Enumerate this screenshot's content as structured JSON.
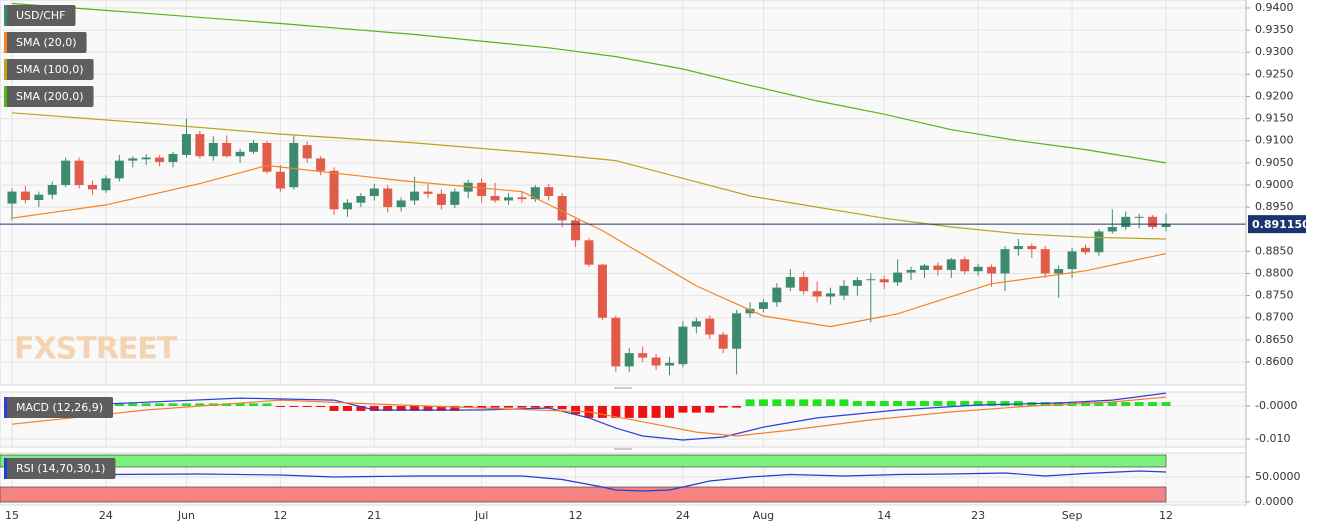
{
  "chart_data": [
    {
      "type": "candlestick",
      "name": "USD/CHF",
      "watermark": "FXSTREET",
      "categories": [
        "15",
        null,
        null,
        null,
        null,
        null,
        null,
        "24",
        null,
        null,
        null,
        null,
        null,
        "Jun",
        null,
        null,
        null,
        null,
        null,
        null,
        "12",
        null,
        null,
        null,
        null,
        null,
        null,
        "21",
        null,
        null,
        null,
        null,
        null,
        null,
        null,
        "Jul",
        null,
        null,
        null,
        null,
        null,
        null,
        "12",
        null,
        null,
        null,
        null,
        null,
        null,
        null,
        "24",
        null,
        null,
        null,
        null,
        null,
        "Aug",
        null,
        null,
        null,
        null,
        null,
        null,
        null,
        null,
        "14",
        null,
        null,
        null,
        null,
        null,
        null,
        "23",
        null,
        null,
        null,
        null,
        null,
        null,
        "Sep",
        null,
        null,
        null,
        null,
        null,
        null,
        "12"
      ],
      "open": [
        0.8958,
        0.8985,
        0.8966,
        0.8978,
        0.9,
        0.9055,
        0.9,
        0.8988,
        0.9015,
        0.9055,
        0.9058,
        0.9062,
        0.9052,
        0.9068,
        0.9115,
        0.9065,
        0.9095,
        0.9065,
        0.9075,
        0.9095,
        0.903,
        0.8995,
        0.909,
        0.906,
        0.9032,
        0.8945,
        0.896,
        0.8975,
        0.8992,
        0.895,
        0.8965,
        0.8985,
        0.898,
        0.8955,
        0.8985,
        0.9005,
        0.8975,
        0.8965,
        0.8972,
        0.8968,
        0.8995,
        0.8975,
        0.892,
        0.8875,
        0.882,
        0.87,
        0.859,
        0.862,
        0.861,
        0.8592,
        0.8595,
        0.868,
        0.8698,
        0.8662,
        0.863,
        0.871,
        0.872,
        0.8735,
        0.8768,
        0.8792,
        0.876,
        0.8748,
        0.875,
        0.8772,
        0.8786,
        0.8787,
        0.878,
        0.8802,
        0.8808,
        0.8818,
        0.8808,
        0.8832,
        0.8805,
        0.8815,
        0.88,
        0.8855,
        0.8862,
        0.8855,
        0.88,
        0.881,
        0.8858,
        0.8848,
        0.8895,
        0.8905,
        0.8928,
        0.8928,
        0.8905
      ],
      "high": [
        0.8992,
        0.8998,
        0.8985,
        0.9008,
        0.9062,
        0.9062,
        0.901,
        0.9022,
        0.9068,
        0.9065,
        0.907,
        0.9068,
        0.9075,
        0.915,
        0.9122,
        0.911,
        0.9112,
        0.9082,
        0.9102,
        0.91,
        0.9045,
        0.9112,
        0.9098,
        0.9065,
        0.904,
        0.8968,
        0.8982,
        0.9002,
        0.9,
        0.8972,
        0.9018,
        0.9002,
        0.899,
        0.8992,
        0.9012,
        0.9015,
        0.9005,
        0.8982,
        0.8985,
        0.9,
        0.9002,
        0.8982,
        0.8925,
        0.888,
        0.8822,
        0.8705,
        0.8632,
        0.8635,
        0.8618,
        0.8612,
        0.8692,
        0.87,
        0.8705,
        0.8668,
        0.8718,
        0.8735,
        0.8742,
        0.8778,
        0.881,
        0.8805,
        0.8782,
        0.8768,
        0.8785,
        0.8792,
        0.88,
        0.8795,
        0.8832,
        0.8815,
        0.8822,
        0.8825,
        0.8835,
        0.8838,
        0.8822,
        0.882,
        0.8862,
        0.8878,
        0.8868,
        0.8862,
        0.8818,
        0.8858,
        0.8865,
        0.89,
        0.8945,
        0.894,
        0.8935,
        0.8932,
        0.8935
      ],
      "low": [
        0.892,
        0.8958,
        0.895,
        0.8968,
        0.8995,
        0.8992,
        0.8978,
        0.8982,
        0.9008,
        0.904,
        0.9045,
        0.9042,
        0.904,
        0.9062,
        0.906,
        0.9055,
        0.9062,
        0.905,
        0.907,
        0.9025,
        0.8985,
        0.899,
        0.905,
        0.9022,
        0.8932,
        0.8928,
        0.895,
        0.8965,
        0.8938,
        0.894,
        0.8955,
        0.897,
        0.8945,
        0.8948,
        0.897,
        0.896,
        0.896,
        0.8955,
        0.896,
        0.8962,
        0.8965,
        0.8905,
        0.886,
        0.8815,
        0.8695,
        0.8578,
        0.8578,
        0.86,
        0.8582,
        0.857,
        0.8588,
        0.8665,
        0.8652,
        0.862,
        0.8572,
        0.87,
        0.8712,
        0.8725,
        0.876,
        0.8752,
        0.8735,
        0.873,
        0.874,
        0.875,
        0.869,
        0.8765,
        0.8772,
        0.8785,
        0.879,
        0.8795,
        0.879,
        0.8798,
        0.8795,
        0.877,
        0.876,
        0.884,
        0.8835,
        0.879,
        0.8745,
        0.879,
        0.8842,
        0.884,
        0.889,
        0.8898,
        0.8902,
        0.89,
        0.8895
      ],
      "close": [
        0.8985,
        0.8966,
        0.8978,
        0.9,
        0.9055,
        0.9,
        0.899,
        0.9015,
        0.9055,
        0.906,
        0.9062,
        0.9052,
        0.907,
        0.9115,
        0.9065,
        0.9095,
        0.9065,
        0.9075,
        0.9095,
        0.903,
        0.8992,
        0.9095,
        0.906,
        0.9032,
        0.8945,
        0.896,
        0.8975,
        0.8992,
        0.895,
        0.8965,
        0.8985,
        0.898,
        0.8955,
        0.8985,
        0.9005,
        0.8975,
        0.8965,
        0.8972,
        0.8968,
        0.8995,
        0.8975,
        0.892,
        0.8875,
        0.882,
        0.87,
        0.859,
        0.862,
        0.861,
        0.8592,
        0.8598,
        0.868,
        0.8692,
        0.8662,
        0.863,
        0.871,
        0.872,
        0.8735,
        0.8768,
        0.8792,
        0.876,
        0.8748,
        0.8755,
        0.8772,
        0.8785,
        0.8787,
        0.878,
        0.8802,
        0.8808,
        0.8818,
        0.8808,
        0.8832,
        0.8805,
        0.8815,
        0.88,
        0.8855,
        0.8862,
        0.8855,
        0.88,
        0.881,
        0.885,
        0.8848,
        0.8895,
        0.8905,
        0.8928,
        0.8928,
        0.8905,
        0.8912
      ],
      "up_color": "#3d8b6e",
      "down_color": "#e15b4b",
      "series": [
        {
          "name": "SMA (20,0)",
          "color": "#f5841f",
          "x": [
            0,
            7,
            14,
            19,
            29,
            38,
            44,
            51,
            56,
            61,
            66,
            73,
            80,
            86
          ],
          "values": [
            0.8925,
            0.8955,
            0.9003,
            0.9044,
            0.901,
            0.8985,
            0.8897,
            0.8772,
            0.8704,
            0.868,
            0.8709,
            0.8777,
            0.8806,
            0.8845
          ]
        },
        {
          "name": "SMA (100,0)",
          "color": "#b8a41b",
          "x": [
            0,
            10,
            20,
            30,
            40,
            45,
            50,
            55,
            60,
            65,
            70,
            75,
            80,
            86
          ],
          "values": [
            0.9163,
            0.914,
            0.9115,
            0.9095,
            0.907,
            0.9055,
            0.9015,
            0.8975,
            0.895,
            0.8925,
            0.8905,
            0.889,
            0.8882,
            0.8878
          ]
        },
        {
          "name": "SMA (200,0)",
          "color": "#57b31c",
          "x": [
            0,
            10,
            20,
            30,
            40,
            45,
            50,
            55,
            60,
            65,
            70,
            75,
            80,
            86
          ],
          "values": [
            0.941,
            0.9388,
            0.9365,
            0.934,
            0.931,
            0.929,
            0.9262,
            0.9225,
            0.919,
            0.916,
            0.9125,
            0.91,
            0.908,
            0.905
          ]
        }
      ],
      "last_price": {
        "value": 0.89115,
        "label": "0.891150"
      },
      "last_price_color": "#1d3470",
      "ylim": [
        0.8548,
        0.9418
      ],
      "yticks": [
        {
          "value": 0.94,
          "label": "0.9400"
        },
        {
          "value": 0.935,
          "label": "0.9350"
        },
        {
          "value": 0.93,
          "label": "0.9300"
        },
        {
          "value": 0.925,
          "label": "0.9250"
        },
        {
          "value": 0.92,
          "label": "0.9200"
        },
        {
          "value": 0.915,
          "label": "0.9150"
        },
        {
          "value": 0.91,
          "label": "0.9100"
        },
        {
          "value": 0.905,
          "label": "0.9050"
        },
        {
          "value": 0.9,
          "label": "0.9000"
        },
        {
          "value": 0.895,
          "label": "0.8950"
        },
        {
          "value": 0.885,
          "label": "0.8850"
        },
        {
          "value": 0.88,
          "label": "0.8800"
        },
        {
          "value": 0.875,
          "label": "0.8750"
        },
        {
          "value": 0.87,
          "label": "0.8700"
        },
        {
          "value": 0.865,
          "label": "0.8650"
        },
        {
          "value": 0.86,
          "label": "0.8600"
        }
      ],
      "grid": true
    },
    {
      "type": "macd",
      "name": "MACD (12,26,9)",
      "histogram": {
        "up_color": "#22e022",
        "down_color": "#ee1111",
        "values": [
          0.001,
          0.001,
          0.001,
          0.001,
          0.001,
          0.001,
          0.001,
          0.0008,
          0.0008,
          0.0008,
          0.0008,
          0.0008,
          0.0008,
          0.0008,
          0.0008,
          0.0008,
          0.0008,
          0.0008,
          0.0008,
          0.0008,
          -0.0002,
          -0.0002,
          -0.0002,
          -0.0002,
          -0.0015,
          -0.0015,
          -0.0015,
          -0.0015,
          -0.0015,
          -0.0015,
          -0.0015,
          -0.0015,
          -0.0015,
          -0.0015,
          -0.0005,
          -0.0005,
          -0.0005,
          -0.0005,
          -0.0005,
          -0.0005,
          -0.0005,
          -0.001,
          -0.0025,
          -0.0036,
          -0.0036,
          -0.0036,
          -0.0036,
          -0.0036,
          -0.0036,
          -0.0036,
          -0.002,
          -0.002,
          -0.002,
          -0.0005,
          -0.0005,
          0.002,
          0.002,
          0.002,
          0.002,
          0.002,
          0.002,
          0.002,
          0.002,
          0.0015,
          0.0015,
          0.0015,
          0.0015,
          0.0015,
          0.0015,
          0.0015,
          0.0015,
          0.0015,
          0.0015,
          0.0015,
          0.0015,
          0.0015,
          0.0012,
          0.0012,
          0.0012,
          0.0012,
          0.0012,
          0.0012,
          0.0012,
          0.0012,
          0.0012,
          0.0012,
          0.0012
        ]
      },
      "series": [
        {
          "color": "#2d3fd8",
          "x": [
            0,
            7,
            17,
            24,
            27,
            35,
            40,
            43,
            45,
            47,
            50,
            53,
            56,
            60,
            66,
            72,
            78,
            82,
            86
          ],
          "values": [
            -0.0021,
            0.0006,
            0.0024,
            0.0018,
            -0.0012,
            -0.0012,
            -0.0006,
            -0.0036,
            -0.0067,
            -0.0091,
            -0.0103,
            -0.0094,
            -0.0064,
            -0.0036,
            -0.0012,
            0.0003,
            0.0009,
            0.0018,
            0.0039
          ]
        },
        {
          "color": "#f08030",
          "x": [
            0,
            10,
            20,
            27,
            35,
            43,
            47,
            51,
            54,
            58,
            64,
            70,
            76,
            82,
            86
          ],
          "values": [
            -0.0055,
            -0.0012,
            0.0018,
            0.0006,
            -0.0006,
            -0.0018,
            -0.0048,
            -0.0079,
            -0.0091,
            -0.0073,
            -0.0042,
            -0.0018,
            0,
            0.0012,
            0.0027
          ]
        }
      ],
      "ylim": [
        -0.01242,
        0.00424
      ],
      "yticks": [
        {
          "value": 0,
          "label": "-0.0000"
        },
        {
          "value": -0.01,
          "label": "-0.010"
        }
      ],
      "grid": true
    },
    {
      "type": "rsi",
      "name": "RSI (14,70,30,1)",
      "bands": [
        {
          "from": 70,
          "to": 100,
          "color": "#7cf07c"
        },
        {
          "from": 0,
          "to": 30,
          "color": "#f48484"
        }
      ],
      "series": [
        {
          "color": "#2040d0",
          "x": [
            0,
            7,
            14,
            20,
            24,
            30,
            38,
            41,
            44,
            45,
            47,
            49,
            52,
            55,
            58,
            62,
            66,
            70,
            74,
            77,
            80,
            84,
            86
          ],
          "values": [
            57,
            55,
            56,
            54,
            50,
            52,
            52,
            45,
            30,
            24,
            22,
            24,
            42,
            50,
            55,
            52,
            55,
            56,
            58,
            52,
            57,
            62,
            60
          ]
        }
      ],
      "ylim": [
        -6,
        98
      ],
      "yticks": [
        {
          "value": 50,
          "label": "50.0000"
        },
        {
          "value": 0,
          "label": "0.0000"
        }
      ],
      "grid": true
    }
  ]
}
